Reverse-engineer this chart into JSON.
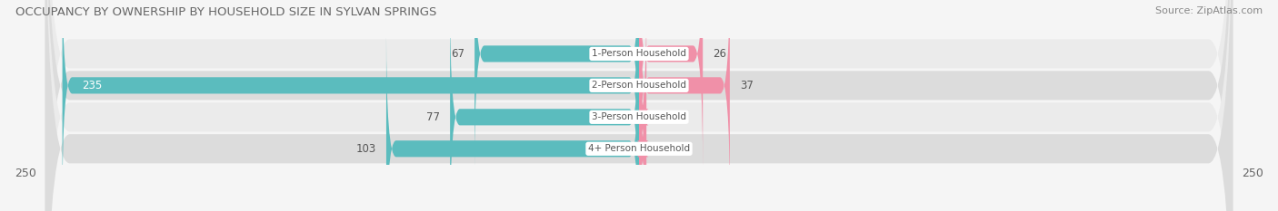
{
  "title": "OCCUPANCY BY OWNERSHIP BY HOUSEHOLD SIZE IN SYLVAN SPRINGS",
  "source": "Source: ZipAtlas.com",
  "categories": [
    "1-Person Household",
    "2-Person Household",
    "3-Person Household",
    "4+ Person Household"
  ],
  "owner_values": [
    67,
    235,
    77,
    103
  ],
  "renter_values": [
    26,
    37,
    3,
    3
  ],
  "owner_color": "#5bbcbe",
  "renter_color": "#f090a8",
  "row_bg_colors": [
    "#ebebeb",
    "#dcdcdc",
    "#ebebeb",
    "#dcdcdc"
  ],
  "xlim": 250,
  "bar_height": 0.52,
  "title_fontsize": 9.5,
  "source_fontsize": 8,
  "tick_fontsize": 9,
  "value_fontsize": 8.5,
  "category_fontsize": 7.5,
  "legend_fontsize": 8.5
}
